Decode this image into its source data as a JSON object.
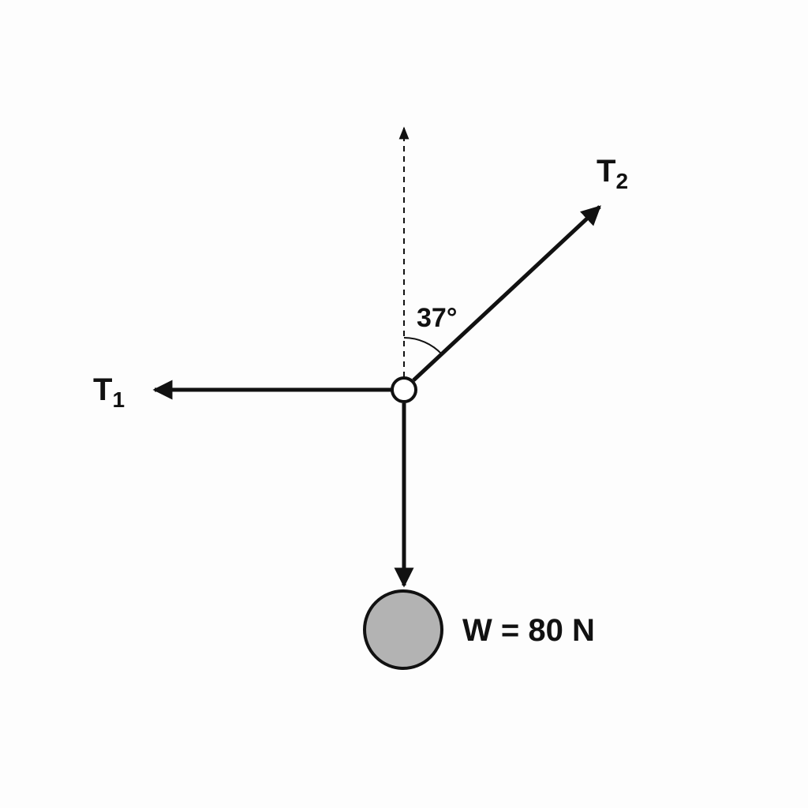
{
  "diagram": {
    "forces": {
      "t1": {
        "symbol": "T",
        "subscript": "1"
      },
      "t2": {
        "symbol": "T",
        "subscript": "2"
      },
      "weight": {
        "label": "W = 80 N"
      }
    },
    "angle": {
      "label": "37°"
    },
    "colors": {
      "stroke": "#111111",
      "background": "#fdfdfd",
      "mass_fill": "#b3b3b3",
      "knot_fill": "#ffffff"
    }
  }
}
